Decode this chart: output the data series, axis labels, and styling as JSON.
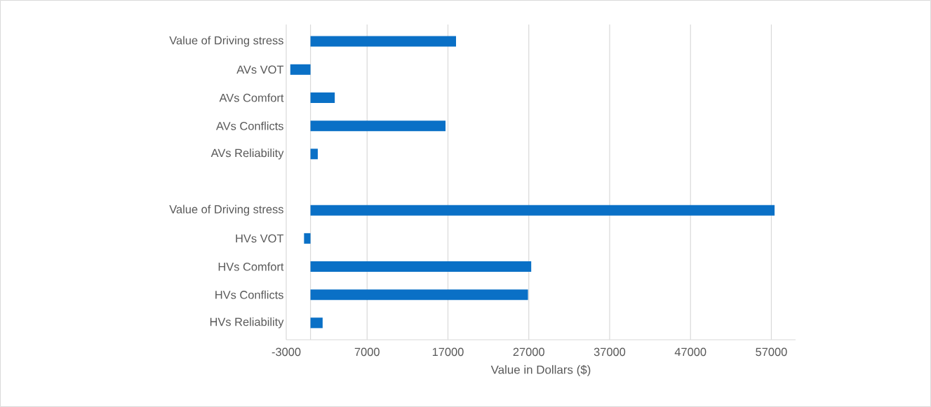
{
  "chart_data": {
    "type": "bar",
    "orientation": "horizontal",
    "xlabel": "Value in Dollars ($)",
    "categories": [
      "Value of Driving stress",
      "AVs VOT",
      "AVs Comfort",
      "AVs Conflicts",
      "AVs Reliability",
      null,
      "Value of Driving stress",
      "HVs VOT",
      "HVs Comfort",
      "HVs Conflicts",
      "HVs Reliability"
    ],
    "values": [
      18000,
      -2500,
      3000,
      16700,
      900,
      null,
      57400,
      -800,
      27300,
      26900,
      1500
    ],
    "color": "#0a70c6",
    "xlim": [
      -3000,
      60000
    ],
    "xticks": [
      -3000,
      7000,
      17000,
      27000,
      37000,
      47000,
      57000
    ],
    "grid": "x"
  }
}
